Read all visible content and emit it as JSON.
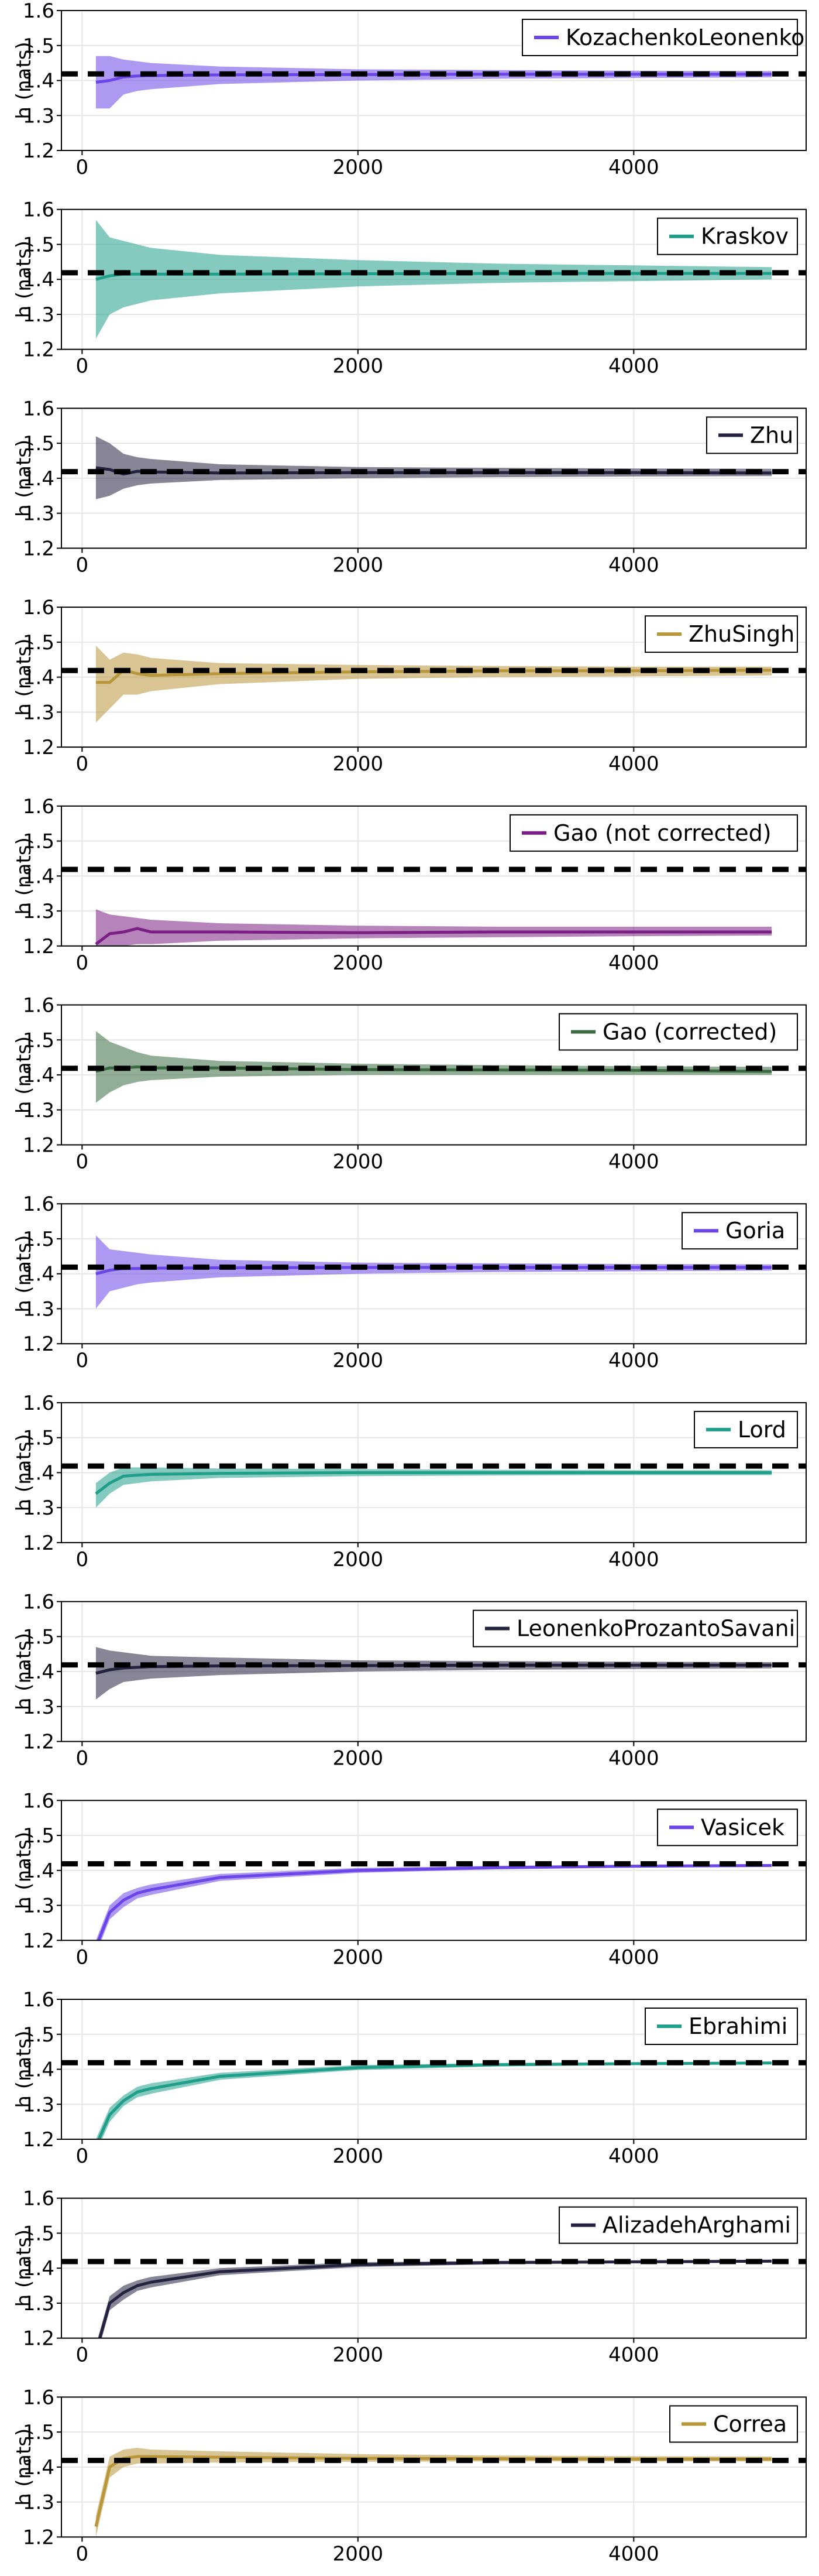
{
  "ylabel": "h (nats)",
  "reference_value": 1.4189,
  "chart_data": [
    {
      "type": "line",
      "legend": "KozachenkoLeonenko",
      "color": "#6c45e8",
      "x": [
        100,
        200,
        300,
        400,
        500,
        1000,
        2000,
        3000,
        4000,
        5000
      ],
      "values": [
        1.395,
        1.4,
        1.41,
        1.413,
        1.414,
        1.416,
        1.417,
        1.418,
        1.418,
        1.418
      ],
      "lower": [
        1.32,
        1.32,
        1.36,
        1.37,
        1.375,
        1.39,
        1.4,
        1.405,
        1.407,
        1.409
      ],
      "upper": [
        1.47,
        1.47,
        1.46,
        1.455,
        1.45,
        1.44,
        1.432,
        1.43,
        1.428,
        1.427
      ],
      "xlim": [
        -150,
        5250
      ],
      "ylim": [
        1.2,
        1.6
      ],
      "xticks": [
        0,
        2000,
        4000
      ],
      "yticks": [
        1.2,
        1.3,
        1.4,
        1.5,
        1.6
      ],
      "legend_position": "top-right",
      "grid": true
    },
    {
      "type": "line",
      "legend": "Kraskov",
      "color": "#1f9e89",
      "x": [
        100,
        200,
        300,
        400,
        500,
        1000,
        2000,
        3000,
        4000,
        5000
      ],
      "values": [
        1.4,
        1.41,
        1.415,
        1.415,
        1.415,
        1.415,
        1.416,
        1.417,
        1.417,
        1.417
      ],
      "lower": [
        1.23,
        1.3,
        1.32,
        1.33,
        1.34,
        1.36,
        1.38,
        1.39,
        1.395,
        1.4
      ],
      "upper": [
        1.57,
        1.52,
        1.51,
        1.5,
        1.49,
        1.47,
        1.455,
        1.445,
        1.44,
        1.435
      ],
      "xlim": [
        -150,
        5250
      ],
      "ylim": [
        1.2,
        1.6
      ],
      "xticks": [
        0,
        2000,
        4000
      ],
      "yticks": [
        1.2,
        1.3,
        1.4,
        1.5,
        1.6
      ],
      "legend_position": "top-right",
      "grid": true
    },
    {
      "type": "line",
      "legend": "Zhu",
      "color": "#23233f",
      "x": [
        100,
        200,
        300,
        400,
        500,
        1000,
        2000,
        3000,
        4000,
        5000
      ],
      "values": [
        1.43,
        1.425,
        1.412,
        1.42,
        1.418,
        1.415,
        1.416,
        1.416,
        1.416,
        1.415
      ],
      "lower": [
        1.34,
        1.35,
        1.37,
        1.38,
        1.385,
        1.395,
        1.4,
        1.403,
        1.405,
        1.406
      ],
      "upper": [
        1.52,
        1.5,
        1.47,
        1.46,
        1.455,
        1.44,
        1.432,
        1.43,
        1.428,
        1.427
      ],
      "xlim": [
        -150,
        5250
      ],
      "ylim": [
        1.2,
        1.6
      ],
      "xticks": [
        0,
        2000,
        4000
      ],
      "yticks": [
        1.2,
        1.3,
        1.4,
        1.5,
        1.6
      ],
      "legend_position": "top-right",
      "grid": true
    },
    {
      "type": "line",
      "legend": "ZhuSingh",
      "color": "#b8963a",
      "x": [
        100,
        200,
        300,
        400,
        500,
        1000,
        2000,
        3000,
        4000,
        5000
      ],
      "values": [
        1.385,
        1.385,
        1.42,
        1.41,
        1.405,
        1.41,
        1.415,
        1.418,
        1.418,
        1.42
      ],
      "lower": [
        1.27,
        1.31,
        1.35,
        1.35,
        1.36,
        1.38,
        1.395,
        1.4,
        1.402,
        1.405
      ],
      "upper": [
        1.49,
        1.45,
        1.47,
        1.465,
        1.455,
        1.44,
        1.435,
        1.432,
        1.43,
        1.43
      ],
      "xlim": [
        -150,
        5250
      ],
      "ylim": [
        1.2,
        1.6
      ],
      "xticks": [
        0,
        2000,
        4000
      ],
      "yticks": [
        1.2,
        1.3,
        1.4,
        1.5,
        1.6
      ],
      "legend_position": "top-right",
      "grid": true
    },
    {
      "type": "line",
      "legend": "Gao (not corrected)",
      "color": "#7a1f84",
      "x": [
        100,
        200,
        300,
        400,
        500,
        1000,
        2000,
        3000,
        4000,
        5000
      ],
      "values": [
        1.205,
        1.235,
        1.24,
        1.25,
        1.24,
        1.24,
        1.238,
        1.24,
        1.24,
        1.24
      ],
      "lower": [
        1.19,
        1.195,
        1.2,
        1.205,
        1.205,
        1.215,
        1.222,
        1.225,
        1.228,
        1.23
      ],
      "upper": [
        1.305,
        1.29,
        1.285,
        1.28,
        1.275,
        1.265,
        1.258,
        1.255,
        1.255,
        1.255
      ],
      "xlim": [
        -150,
        5250
      ],
      "ylim": [
        1.2,
        1.6
      ],
      "xticks": [
        0,
        2000,
        4000
      ],
      "yticks": [
        1.2,
        1.3,
        1.4,
        1.5,
        1.6
      ],
      "legend_position": "top-right",
      "grid": true
    },
    {
      "type": "line",
      "legend": "Gao (corrected)",
      "color": "#3b6b40",
      "x": [
        100,
        200,
        300,
        400,
        500,
        1000,
        2000,
        3000,
        4000,
        5000
      ],
      "values": [
        1.41,
        1.42,
        1.42,
        1.423,
        1.42,
        1.42,
        1.415,
        1.414,
        1.413,
        1.41
      ],
      "lower": [
        1.32,
        1.35,
        1.37,
        1.38,
        1.385,
        1.395,
        1.4,
        1.4,
        1.4,
        1.4
      ],
      "upper": [
        1.525,
        1.495,
        1.48,
        1.465,
        1.455,
        1.44,
        1.432,
        1.428,
        1.425,
        1.423
      ],
      "xlim": [
        -150,
        5250
      ],
      "ylim": [
        1.2,
        1.6
      ],
      "xticks": [
        0,
        2000,
        4000
      ],
      "yticks": [
        1.2,
        1.3,
        1.4,
        1.5,
        1.6
      ],
      "legend_position": "top-right",
      "grid": true
    },
    {
      "type": "line",
      "legend": "Goria",
      "color": "#6c45e8",
      "x": [
        100,
        200,
        300,
        400,
        500,
        1000,
        2000,
        3000,
        4000,
        5000
      ],
      "values": [
        1.4,
        1.41,
        1.415,
        1.415,
        1.416,
        1.417,
        1.418,
        1.418,
        1.418,
        1.418
      ],
      "lower": [
        1.3,
        1.35,
        1.36,
        1.37,
        1.375,
        1.39,
        1.4,
        1.405,
        1.407,
        1.409
      ],
      "upper": [
        1.51,
        1.47,
        1.465,
        1.46,
        1.455,
        1.44,
        1.432,
        1.43,
        1.428,
        1.427
      ],
      "xlim": [
        -150,
        5250
      ],
      "ylim": [
        1.2,
        1.6
      ],
      "xticks": [
        0,
        2000,
        4000
      ],
      "yticks": [
        1.2,
        1.3,
        1.4,
        1.5,
        1.6
      ],
      "legend_position": "top-right",
      "grid": true
    },
    {
      "type": "line",
      "legend": "Lord",
      "color": "#1f9e89",
      "x": [
        100,
        200,
        300,
        400,
        500,
        1000,
        2000,
        3000,
        4000,
        5000
      ],
      "values": [
        1.34,
        1.37,
        1.39,
        1.393,
        1.395,
        1.398,
        1.4,
        1.4,
        1.4,
        1.4
      ],
      "lower": [
        1.3,
        1.34,
        1.365,
        1.37,
        1.375,
        1.385,
        1.39,
        1.392,
        1.393,
        1.393
      ],
      "upper": [
        1.37,
        1.4,
        1.415,
        1.415,
        1.415,
        1.412,
        1.41,
        1.408,
        1.407,
        1.407
      ],
      "xlim": [
        -150,
        5250
      ],
      "ylim": [
        1.2,
        1.6
      ],
      "xticks": [
        0,
        2000,
        4000
      ],
      "yticks": [
        1.2,
        1.3,
        1.4,
        1.5,
        1.6
      ],
      "legend_position": "top-right",
      "grid": true
    },
    {
      "type": "line",
      "legend": "LeonenkoProzantoSavani",
      "color": "#23233f",
      "x": [
        100,
        200,
        300,
        400,
        500,
        1000,
        2000,
        3000,
        4000,
        5000
      ],
      "values": [
        1.395,
        1.405,
        1.41,
        1.412,
        1.414,
        1.416,
        1.417,
        1.418,
        1.418,
        1.418
      ],
      "lower": [
        1.32,
        1.35,
        1.37,
        1.375,
        1.38,
        1.39,
        1.4,
        1.405,
        1.407,
        1.409
      ],
      "upper": [
        1.47,
        1.46,
        1.455,
        1.45,
        1.445,
        1.44,
        1.432,
        1.43,
        1.428,
        1.427
      ],
      "xlim": [
        -150,
        5250
      ],
      "ylim": [
        1.2,
        1.6
      ],
      "xticks": [
        0,
        2000,
        4000
      ],
      "yticks": [
        1.2,
        1.3,
        1.4,
        1.5,
        1.6
      ],
      "legend_position": "top-right",
      "grid": true
    },
    {
      "type": "line",
      "legend": "Vasicek",
      "color": "#6c45e8",
      "x": [
        100,
        200,
        300,
        400,
        500,
        1000,
        2000,
        3000,
        4000,
        5000
      ],
      "values": [
        1.18,
        1.28,
        1.315,
        1.335,
        1.345,
        1.38,
        1.4,
        1.408,
        1.412,
        1.414
      ],
      "lower": [
        1.16,
        1.26,
        1.295,
        1.32,
        1.33,
        1.37,
        1.393,
        1.403,
        1.408,
        1.41
      ],
      "upper": [
        1.2,
        1.3,
        1.335,
        1.35,
        1.36,
        1.39,
        1.407,
        1.413,
        1.416,
        1.418
      ],
      "xlim": [
        -150,
        5250
      ],
      "ylim": [
        1.2,
        1.6
      ],
      "xticks": [
        0,
        2000,
        4000
      ],
      "yticks": [
        1.2,
        1.3,
        1.4,
        1.5,
        1.6
      ],
      "legend_position": "top-right",
      "grid": true
    },
    {
      "type": "line",
      "legend": "Ebrahimi",
      "color": "#1f9e89",
      "x": [
        100,
        200,
        300,
        400,
        500,
        1000,
        2000,
        3000,
        4000,
        5000
      ],
      "values": [
        1.18,
        1.27,
        1.31,
        1.335,
        1.345,
        1.38,
        1.405,
        1.413,
        1.416,
        1.418
      ],
      "lower": [
        1.16,
        1.25,
        1.295,
        1.32,
        1.33,
        1.37,
        1.398,
        1.408,
        1.412,
        1.414
      ],
      "upper": [
        1.2,
        1.29,
        1.325,
        1.35,
        1.36,
        1.39,
        1.412,
        1.418,
        1.42,
        1.422
      ],
      "xlim": [
        -150,
        5250
      ],
      "ylim": [
        1.2,
        1.6
      ],
      "xticks": [
        0,
        2000,
        4000
      ],
      "yticks": [
        1.2,
        1.3,
        1.4,
        1.5,
        1.6
      ],
      "legend_position": "top-right",
      "grid": true
    },
    {
      "type": "line",
      "legend": "AlizadehArghami",
      "color": "#23233f",
      "x": [
        100,
        200,
        300,
        400,
        500,
        1000,
        2000,
        3000,
        4000,
        5000
      ],
      "values": [
        1.16,
        1.3,
        1.33,
        1.35,
        1.36,
        1.39,
        1.41,
        1.416,
        1.418,
        1.42
      ],
      "lower": [
        1.14,
        1.28,
        1.31,
        1.335,
        1.345,
        1.38,
        1.403,
        1.411,
        1.414,
        1.416
      ],
      "upper": [
        1.18,
        1.32,
        1.35,
        1.365,
        1.375,
        1.4,
        1.417,
        1.421,
        1.422,
        1.424
      ],
      "xlim": [
        -150,
        5250
      ],
      "ylim": [
        1.2,
        1.6
      ],
      "xticks": [
        0,
        2000,
        4000
      ],
      "yticks": [
        1.2,
        1.3,
        1.4,
        1.5,
        1.6
      ],
      "legend_position": "top-right",
      "grid": true
    },
    {
      "type": "line",
      "legend": "Correa",
      "color": "#b8963a",
      "x": [
        100,
        200,
        300,
        400,
        500,
        1000,
        2000,
        3000,
        4000,
        5000
      ],
      "values": [
        1.23,
        1.4,
        1.425,
        1.43,
        1.43,
        1.428,
        1.425,
        1.424,
        1.423,
        1.423
      ],
      "lower": [
        1.2,
        1.37,
        1.4,
        1.41,
        1.41,
        1.413,
        1.415,
        1.416,
        1.416,
        1.416
      ],
      "upper": [
        1.26,
        1.43,
        1.45,
        1.455,
        1.45,
        1.445,
        1.437,
        1.433,
        1.431,
        1.43
      ],
      "xlim": [
        -150,
        5250
      ],
      "ylim": [
        1.2,
        1.6
      ],
      "xticks": [
        0,
        2000,
        4000
      ],
      "yticks": [
        1.2,
        1.3,
        1.4,
        1.5,
        1.6
      ],
      "legend_position": "top-right",
      "grid": true
    }
  ]
}
